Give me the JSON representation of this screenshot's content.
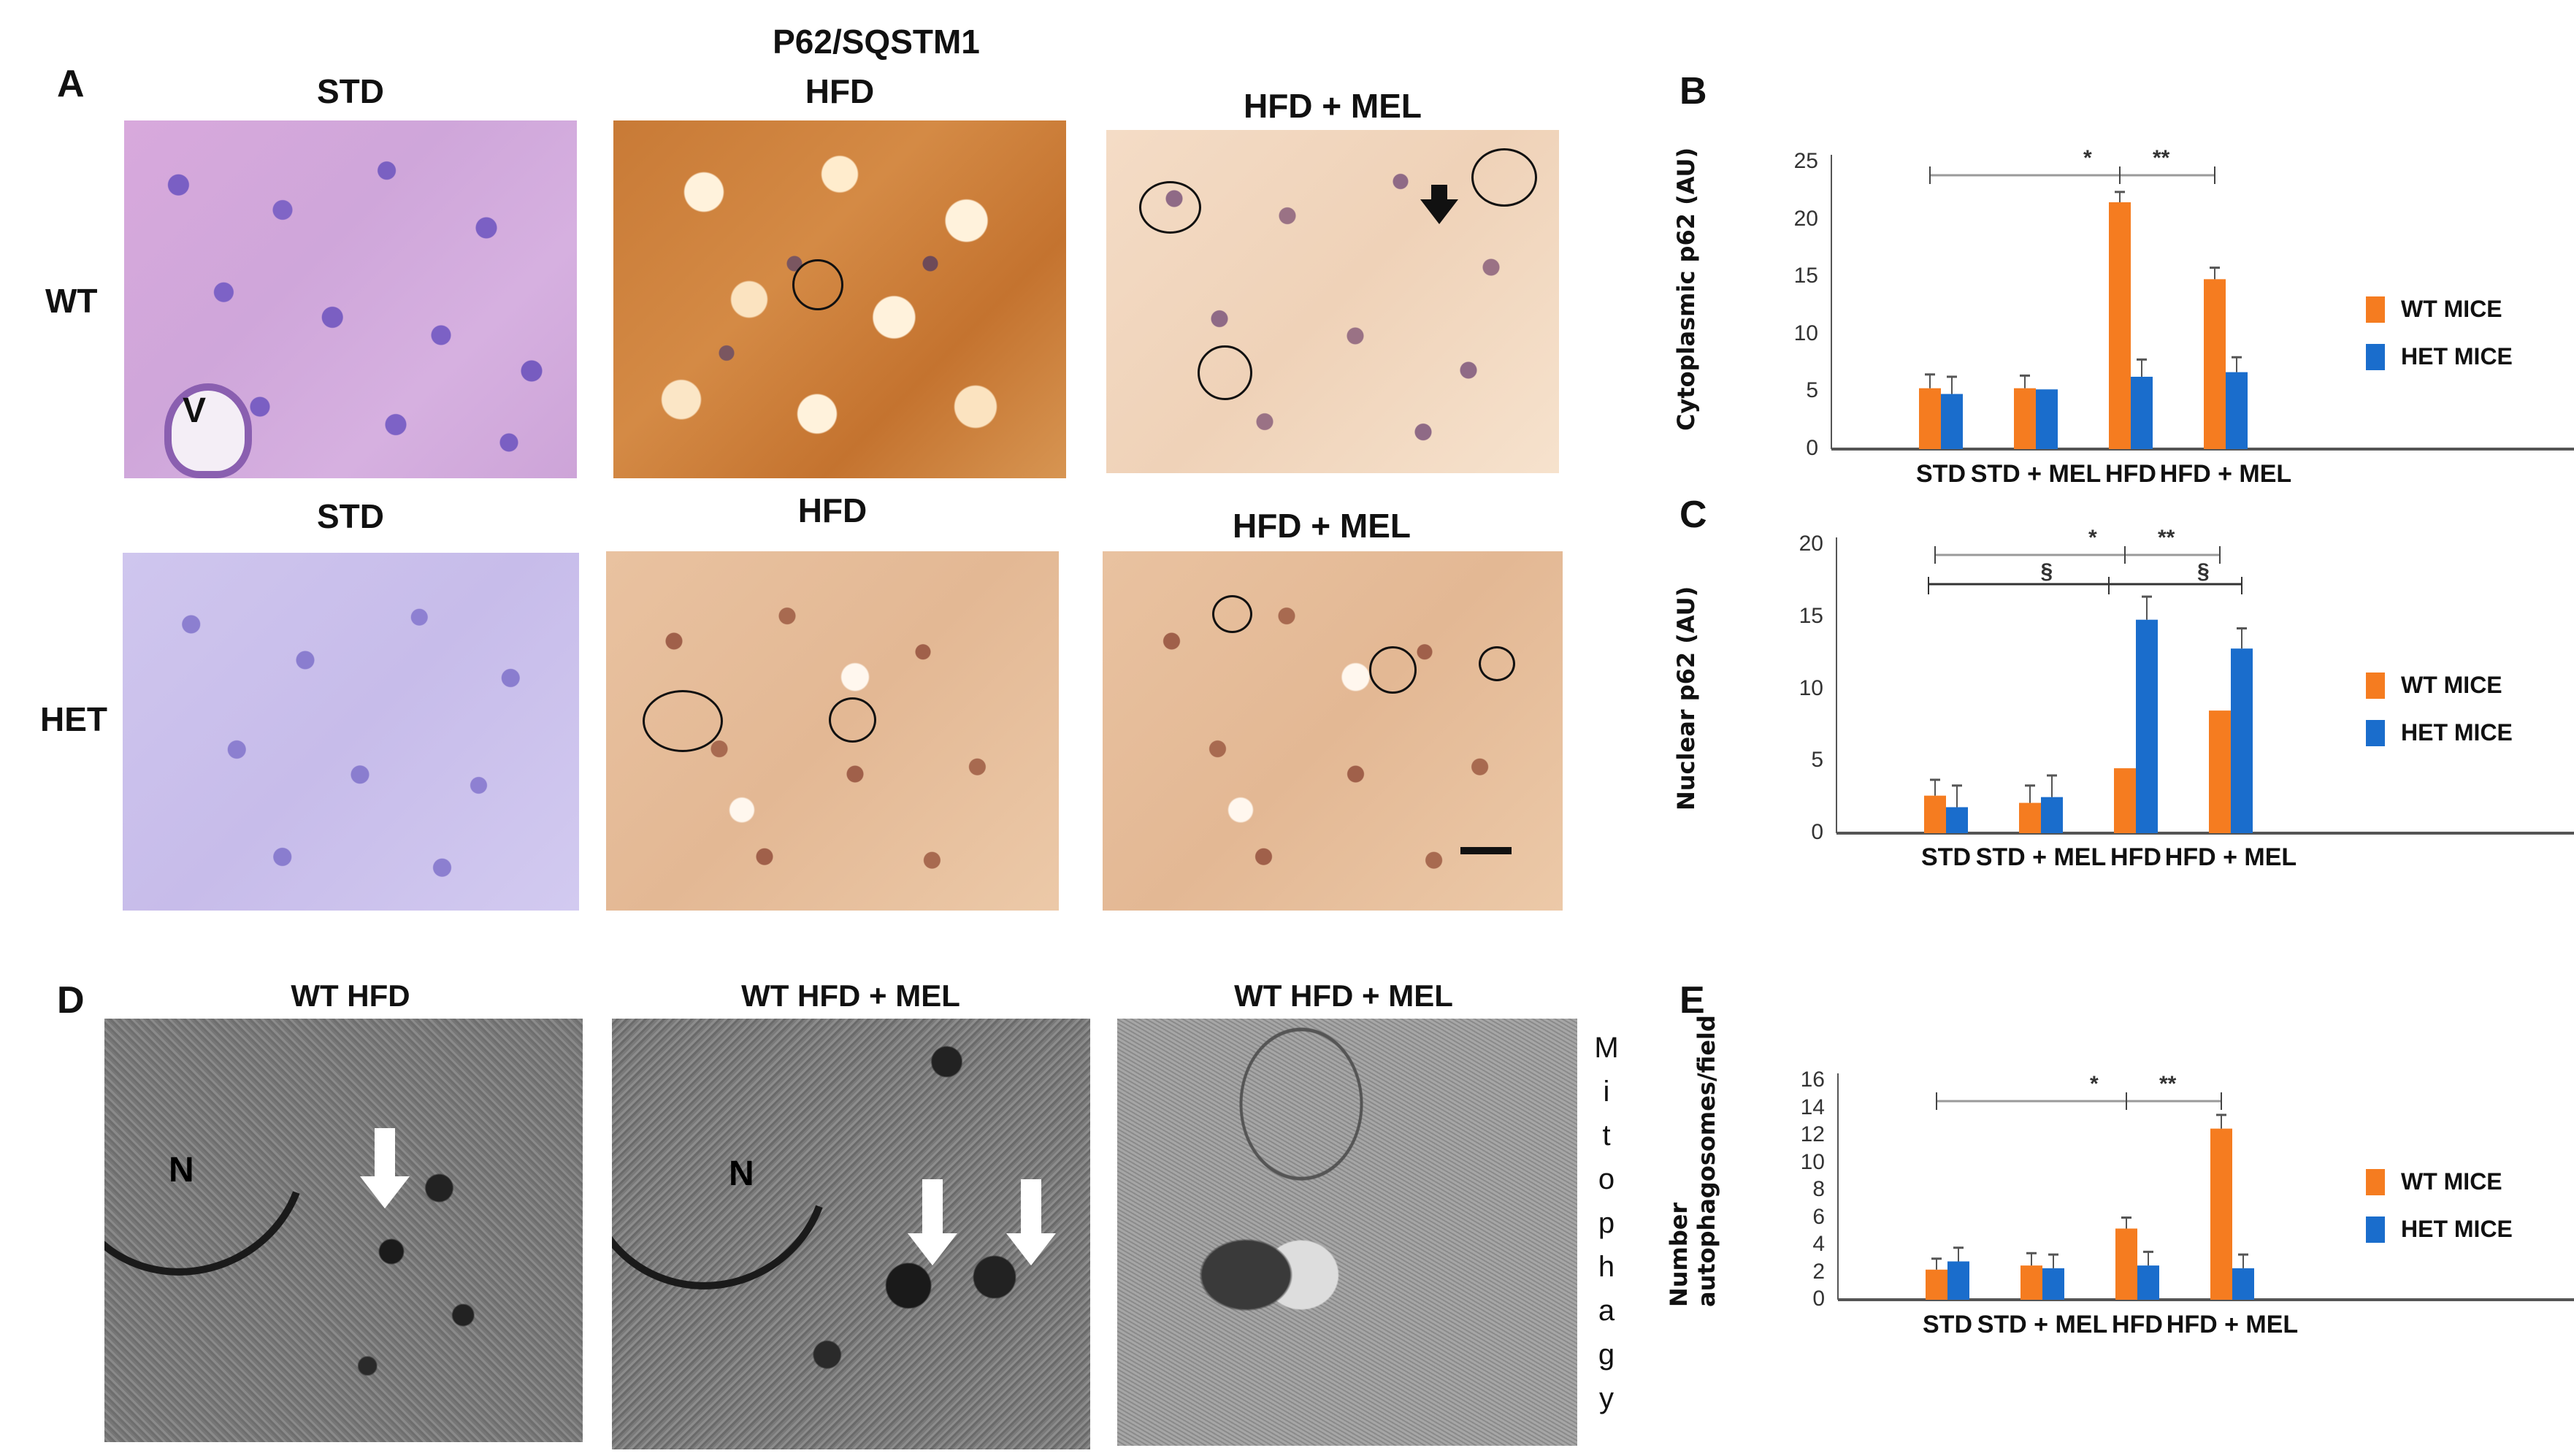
{
  "figure": {
    "main_title": "P62/SQSTM1",
    "panel_letters": {
      "A": "A",
      "B": "B",
      "C": "C",
      "D": "D",
      "E": "E"
    }
  },
  "panel_a": {
    "row_labels": [
      "WT",
      "HET"
    ],
    "top_titles": [
      "STD",
      "HFD",
      "HFD + MEL"
    ],
    "bottom_titles": [
      "STD",
      "HFD",
      "HFD + MEL"
    ],
    "vessel_label": "V"
  },
  "panel_d": {
    "titles": [
      "WT HFD",
      "WT HFD + MEL",
      "WT HFD + MEL"
    ],
    "nucleus_label": "N",
    "side_label_letters": [
      "M",
      "i",
      "t",
      "o",
      "p",
      "h",
      "a",
      "g",
      "y"
    ]
  },
  "legend": {
    "wt": "WT MICE",
    "het": "HET MICE"
  },
  "colors": {
    "wt": "#F57C20",
    "het": "#1A6DCC",
    "axis": "#555555",
    "sigline": "#9a9a9a",
    "sigline_dark": "#333333"
  },
  "chart_data": [
    {
      "id": "B",
      "type": "bar",
      "title": "",
      "xlabel": "",
      "ylabel": "Cytoplasmic p62 (AU)",
      "categories": [
        "STD",
        "STD + MEL",
        "HFD",
        "HFD + MEL"
      ],
      "ylim": [
        0,
        25
      ],
      "yticks": [
        "0",
        "5",
        "10",
        "15",
        "20",
        "25"
      ],
      "series": [
        {
          "name": "WT MICE",
          "values": [
            5.3,
            5.3,
            21.5,
            14.8
          ],
          "errors": [
            1.2,
            1.1,
            0.9,
            1.0
          ]
        },
        {
          "name": "HET MICE",
          "values": [
            4.8,
            5.2,
            6.3,
            6.7
          ],
          "errors": [
            1.5,
            0.0,
            1.5,
            1.3
          ]
        }
      ],
      "significance": [
        {
          "label": "*",
          "from": "STD",
          "to": "HFD"
        },
        {
          "label": "**",
          "from": "HFD",
          "to": "HFD + MEL"
        }
      ],
      "legend_position": "right",
      "grid": false
    },
    {
      "id": "C",
      "type": "bar",
      "title": "",
      "xlabel": "",
      "ylabel": "Nuclear p62 (AU)",
      "categories": [
        "STD",
        "STD + MEL",
        "HFD",
        "HFD + MEL"
      ],
      "ylim": [
        0,
        20
      ],
      "yticks": [
        "0",
        "5",
        "10",
        "15",
        "20"
      ],
      "series": [
        {
          "name": "WT MICE",
          "values": [
            2.6,
            2.1,
            4.5,
            8.5
          ],
          "errors": [
            1.1,
            1.2,
            0.0,
            0.0
          ]
        },
        {
          "name": "HET MICE",
          "values": [
            1.8,
            2.5,
            14.8,
            12.8
          ],
          "errors": [
            1.5,
            1.5,
            1.6,
            1.4
          ]
        }
      ],
      "significance": [
        {
          "label": "*",
          "from": "STD",
          "to": "HFD"
        },
        {
          "label": "**",
          "from": "HFD",
          "to": "HFD + MEL"
        },
        {
          "label": "§",
          "from": "STD",
          "to": "HFD"
        },
        {
          "label": "§",
          "from": "HFD",
          "to": "HFD + MEL"
        }
      ],
      "legend_position": "right",
      "grid": false
    },
    {
      "id": "E",
      "type": "bar",
      "title": "",
      "xlabel": "",
      "ylabel": "Number autophagosomes/field",
      "ylabel_lines": [
        "Number",
        "autophagosomes/field"
      ],
      "categories": [
        "STD",
        "STD + MEL",
        "HFD",
        "HFD + MEL"
      ],
      "ylim": [
        0,
        16
      ],
      "yticks": [
        "0",
        "2",
        "4",
        "6",
        "8",
        "10",
        "12",
        "14",
        "16"
      ],
      "series": [
        {
          "name": "WT MICE",
          "values": [
            2.2,
            2.5,
            5.2,
            12.5
          ],
          "errors": [
            0.8,
            0.9,
            0.8,
            1.0
          ]
        },
        {
          "name": "HET MICE",
          "values": [
            2.8,
            2.3,
            2.5,
            2.3
          ],
          "errors": [
            1.0,
            1.0,
            1.0,
            1.0
          ]
        }
      ],
      "significance": [
        {
          "label": "*",
          "from": "STD",
          "to": "HFD"
        },
        {
          "label": "**",
          "from": "HFD",
          "to": "HFD + MEL"
        }
      ],
      "legend_position": "right",
      "grid": false
    }
  ]
}
